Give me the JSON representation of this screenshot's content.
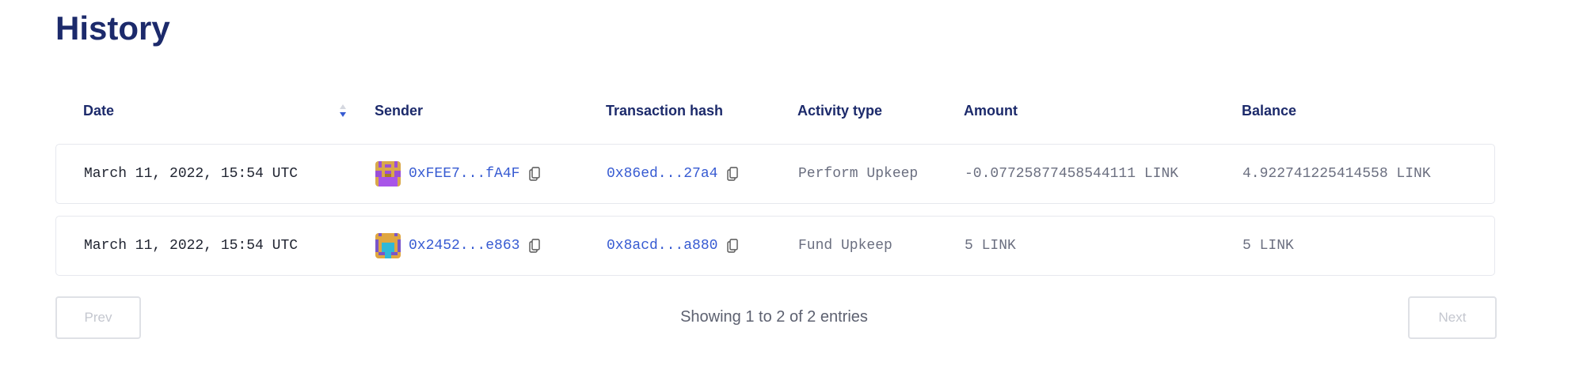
{
  "page": {
    "title": "History"
  },
  "table": {
    "columns": [
      "Date",
      "Sender",
      "Transaction hash",
      "Activity type",
      "Amount",
      "Balance"
    ],
    "sort": {
      "column": "Date",
      "direction": "descending",
      "icon": "sort-arrows-icon"
    },
    "rows": [
      {
        "date": "March 11, 2022, 15:54 UTC",
        "sender": "0xFEE7...fA4F",
        "tx_hash": "0x86ed...27a4",
        "activity": "Perform Upkeep",
        "amount": "-0.07725877458544111 LINK",
        "balance": "4.922741225414558 LINK"
      },
      {
        "date": "March 11, 2022, 15:54 UTC",
        "sender": "0x2452...e863",
        "tx_hash": "0x8acd...a880",
        "activity": "Fund Upkeep",
        "amount": "5 LINK",
        "balance": "5 LINK"
      }
    ]
  },
  "pagination": {
    "prev_label": "Prev",
    "next_label": "Next",
    "summary": "Showing 1 to 2 of 2 entries"
  },
  "colors": {
    "title": "#1c2a6b",
    "link": "#375bd2",
    "border": "#e6e8ee"
  }
}
